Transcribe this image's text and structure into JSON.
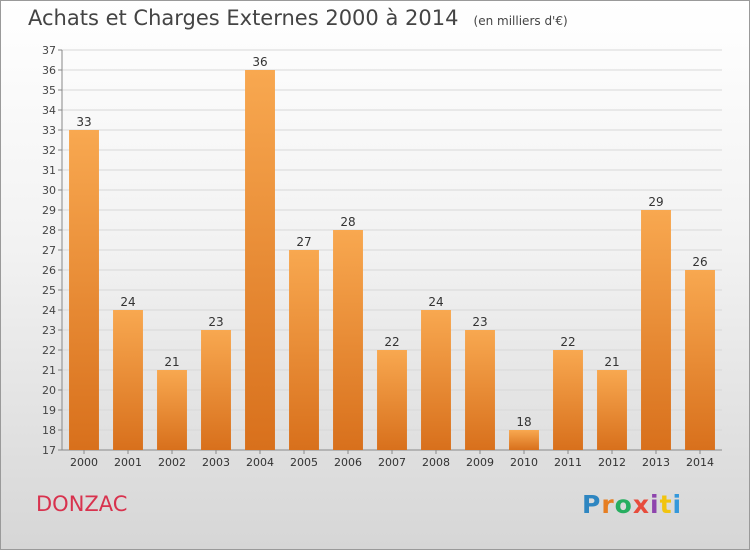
{
  "header": {
    "title": "Achats et Charges Externes 2000 à 2014",
    "subtitle": "(en milliers d'€)"
  },
  "footer": {
    "place": "DONZAC",
    "logo_text": "Proxiti",
    "logo_colors": [
      "#2e86c1",
      "#e67e22",
      "#27ae60",
      "#e74c3c",
      "#8e44ad",
      "#f1c40f",
      "#3498db"
    ]
  },
  "chart_data": {
    "type": "bar",
    "title": "Achats et Charges Externes 2000 à 2014",
    "subtitle": "(en milliers d'€)",
    "xlabel": "",
    "ylabel": "",
    "categories": [
      "2000",
      "2001",
      "2002",
      "2003",
      "2004",
      "2005",
      "2006",
      "2007",
      "2008",
      "2009",
      "2010",
      "2011",
      "2012",
      "2013",
      "2014"
    ],
    "values": [
      33,
      24,
      21,
      23,
      36,
      27,
      28,
      22,
      24,
      23,
      18,
      22,
      21,
      29,
      26
    ],
    "ylim": [
      17,
      37
    ],
    "ytick_step": 1,
    "grid": true,
    "legend": "none",
    "bar_color_top": "#f8a850",
    "bar_color_bottom": "#d8701c",
    "grid_color": "#d8d8d8"
  }
}
